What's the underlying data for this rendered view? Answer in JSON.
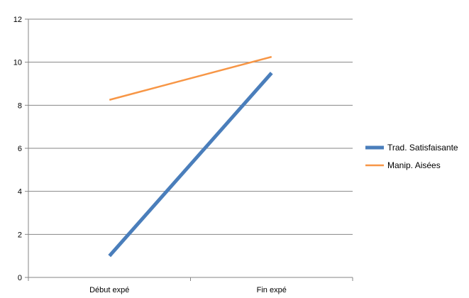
{
  "chart_data": {
    "type": "line",
    "categories": [
      "Début expé",
      "Fin expé"
    ],
    "series": [
      {
        "name": "Trad. Satisfaisante",
        "values": [
          1,
          9.5
        ],
        "color": "#4a7ebb"
      },
      {
        "name": "Manip. Aisées",
        "values": [
          8.25,
          10.25
        ],
        "color": "#f79646"
      }
    ],
    "ylim": [
      0,
      12
    ],
    "y_ticks": [
      0,
      2,
      4,
      6,
      8,
      10,
      12
    ],
    "grid": true,
    "legend_position": "right",
    "title": "",
    "xlabel": "",
    "ylabel": ""
  }
}
